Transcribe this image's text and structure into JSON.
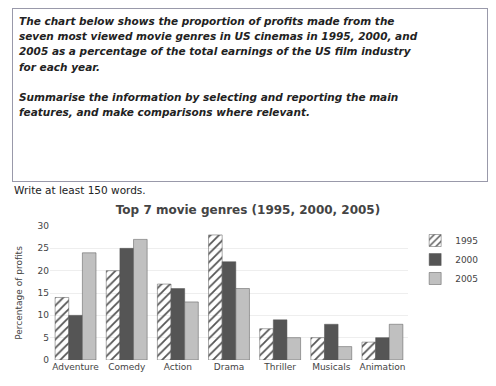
{
  "chart_data": {
    "type": "bar",
    "title": "Top 7 movie genres (1995, 2000, 2005)",
    "ylabel": "Percentage of profits",
    "categories": [
      "Adventure",
      "Comedy",
      "Action",
      "Drama",
      "Thriller",
      "Musicals",
      "Animation"
    ],
    "series": [
      {
        "name": "1995",
        "color": "#d4d4aa",
        "marker": "hatch",
        "values": [
          14,
          20,
          17,
          28,
          7,
          5,
          4
        ]
      },
      {
        "name": "2000",
        "color": "#555555",
        "values": [
          10,
          25,
          16,
          22,
          9,
          8,
          5
        ]
      },
      {
        "name": "2005",
        "color": "#c0c0c0",
        "values": [
          24,
          27,
          13,
          16,
          5,
          3,
          8
        ]
      }
    ],
    "ylim": [
      0,
      30
    ],
    "yticks": [
      0,
      5,
      10,
      15,
      20,
      25,
      30
    ],
    "grid": true,
    "legend": "upper right",
    "annotations": [
      [
        "The chart below shows the proportion of profits made from the",
        "seven most viewed movie genres in US cinemas in 1995, 2000, and",
        "2005 as a percentage of the total earnings of the US film industry",
        "for each year."
      ],
      [
        "Summarise the information by selecting and reporting the main",
        "features, and make comparisons where relevant."
      ],
      [
        "Write at least 150 words."
      ]
    ]
  }
}
